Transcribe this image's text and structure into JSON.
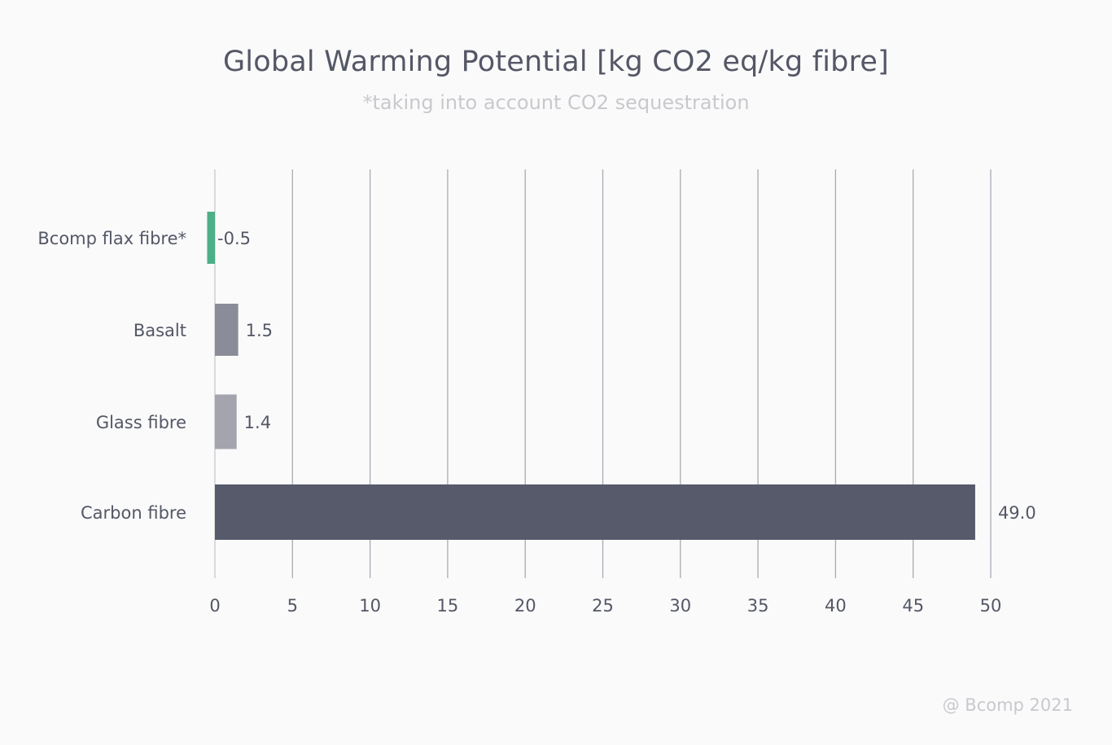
{
  "chart_data": {
    "type": "bar",
    "orientation": "horizontal",
    "title": "Global Warming Potential [kg CO2 eq/kg fibre]",
    "subtitle": "*taking into account CO2 sequestration",
    "categories": [
      "Bcomp flax fibre*",
      "Basalt",
      "Glass fibre",
      "Carbon fibre"
    ],
    "values": [
      -0.5,
      1.5,
      1.4,
      49.0
    ],
    "value_labels": [
      "-0.5",
      "1.5",
      "1.4",
      "49.0"
    ],
    "colors": [
      "#4caf87",
      "#8a8c99",
      "#a3a4ae",
      "#575a6b"
    ],
    "xlim": [
      0,
      50
    ],
    "xticks": [
      0,
      5,
      10,
      15,
      20,
      25,
      30,
      35,
      40,
      45,
      50
    ],
    "xtick_labels": [
      "0",
      "5",
      "10",
      "15",
      "20",
      "25",
      "30",
      "35",
      "40",
      "45",
      "50"
    ],
    "grid": true,
    "legend": "none"
  },
  "footer": {
    "credit": "@ Bcomp 2021"
  }
}
